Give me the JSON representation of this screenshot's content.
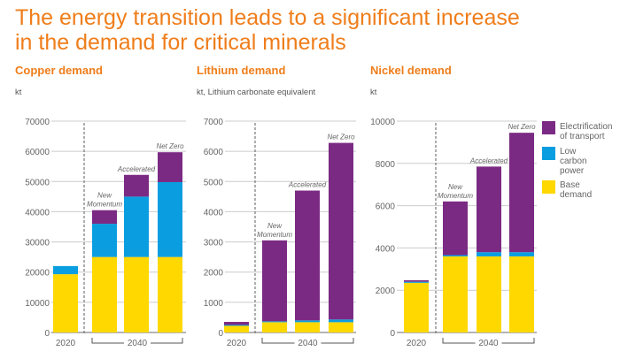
{
  "title_line1": "The energy transition leads to a significant increase",
  "title_line2": "in the demand for critical minerals",
  "colors": {
    "electrification": "#7b2a83",
    "low_carbon": "#0a9ee0",
    "base": "#ffd800",
    "title": "#ef7d1a"
  },
  "legend": [
    {
      "key": "electrification",
      "label": "Electrification of transport"
    },
    {
      "key": "low_carbon",
      "label": "Low carbon power"
    },
    {
      "key": "base",
      "label": "Base demand"
    }
  ],
  "chart_data": [
    {
      "type": "bar",
      "stacked": true,
      "title": "Copper demand",
      "ylabel": "kt",
      "ylim": [
        0,
        70000
      ],
      "yticks": [
        0,
        10000,
        20000,
        30000,
        40000,
        50000,
        60000,
        70000
      ],
      "categories": [
        "2020",
        "New Momentum",
        "Accelerated",
        "Net Zero"
      ],
      "x_groups": [
        "2020",
        "2040"
      ],
      "series": [
        {
          "name": "Base demand",
          "key": "base",
          "values": [
            19300,
            25000,
            25000,
            25000
          ]
        },
        {
          "name": "Low carbon power",
          "key": "low_carbon",
          "values": [
            2700,
            11000,
            20000,
            24800
          ]
        },
        {
          "name": "Electrification of transport",
          "key": "electrification",
          "values": [
            0,
            4500,
            7200,
            9900
          ]
        }
      ]
    },
    {
      "type": "bar",
      "stacked": true,
      "title": "Lithium demand",
      "ylabel": "kt, Lithium carbonate equivalent",
      "ylim": [
        0,
        7000
      ],
      "yticks": [
        0,
        1000,
        2000,
        3000,
        4000,
        5000,
        6000,
        7000
      ],
      "categories": [
        "2020",
        "New Momentum",
        "Accelerated",
        "Net Zero"
      ],
      "x_groups": [
        "2020",
        "2040"
      ],
      "series": [
        {
          "name": "Base demand",
          "key": "base",
          "values": [
            220,
            340,
            340,
            340
          ]
        },
        {
          "name": "Low carbon power",
          "key": "low_carbon",
          "values": [
            30,
            30,
            60,
            90
          ]
        },
        {
          "name": "Electrification of transport",
          "key": "electrification",
          "values": [
            100,
            2680,
            4300,
            5850
          ]
        }
      ]
    },
    {
      "type": "bar",
      "stacked": true,
      "title": "Nickel demand",
      "ylabel": "kt",
      "ylim": [
        0,
        10000
      ],
      "yticks": [
        0,
        2000,
        4000,
        6000,
        8000,
        10000
      ],
      "categories": [
        "2020",
        "New Momentum",
        "Accelerated",
        "Net Zero"
      ],
      "x_groups": [
        "2020",
        "2040"
      ],
      "series": [
        {
          "name": "Base demand",
          "key": "base",
          "values": [
            2350,
            3600,
            3600,
            3600
          ]
        },
        {
          "name": "Low carbon power",
          "key": "low_carbon",
          "values": [
            50,
            60,
            200,
            200
          ]
        },
        {
          "name": "Electrification of transport",
          "key": "electrification",
          "values": [
            70,
            2540,
            4050,
            5650
          ]
        }
      ]
    }
  ]
}
